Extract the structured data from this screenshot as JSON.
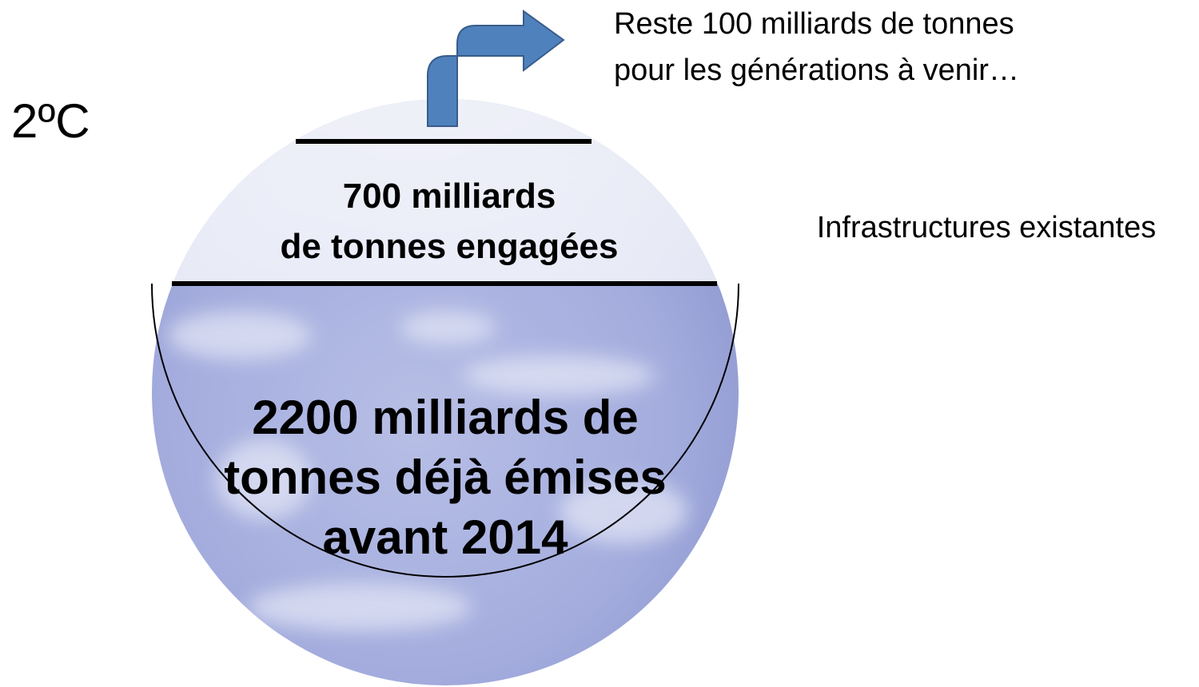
{
  "temperature_label": "2ºC",
  "remaining": {
    "lines": [
      "Reste 100 milliards de tonnes",
      "pour les générations à venir…"
    ]
  },
  "committed": {
    "lines": [
      "700 milliards",
      "de tonnes engagées"
    ]
  },
  "infrastructure_label": "Infrastructures existantes",
  "emitted": {
    "lines": [
      "2200 milliards de",
      "tonnes déjà émises",
      "avant 2014"
    ]
  }
}
